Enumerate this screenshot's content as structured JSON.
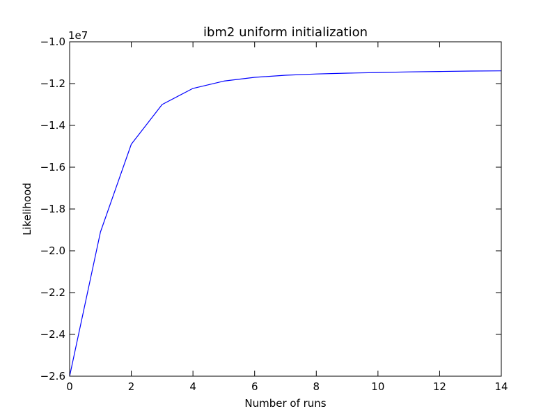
{
  "chart_data": {
    "type": "line",
    "title": "ibm2 uniform initialization",
    "xlabel": "Number of runs",
    "ylabel": "Likelihood",
    "offset_label": "1e7",
    "xlim": [
      0,
      14
    ],
    "ylim": [
      -2.6,
      -1.0
    ],
    "xticks": [
      0,
      2,
      4,
      6,
      8,
      10,
      12,
      14
    ],
    "yticks": [
      -2.6,
      -2.4,
      -2.2,
      -2.0,
      -1.8,
      -1.6,
      -1.4,
      -1.2,
      -1.0
    ],
    "xtick_labels": [
      "0",
      "2",
      "4",
      "6",
      "8",
      "10",
      "12",
      "14"
    ],
    "ytick_labels": [
      "−2.6",
      "−2.4",
      "−2.2",
      "−2.0",
      "−1.8",
      "−1.6",
      "−1.4",
      "−1.2",
      "−1.0"
    ],
    "grid": false,
    "series": [
      {
        "color": "#0000ff",
        "x": [
          0,
          1,
          2,
          3,
          4,
          5,
          6,
          7,
          8,
          9,
          10,
          11,
          12,
          13,
          14
        ],
        "y": [
          -2.6,
          -1.91,
          -1.49,
          -1.3,
          -1.223,
          -1.188,
          -1.17,
          -1.16,
          -1.154,
          -1.15,
          -1.147,
          -1.144,
          -1.142,
          -1.14,
          -1.139
        ]
      }
    ]
  }
}
